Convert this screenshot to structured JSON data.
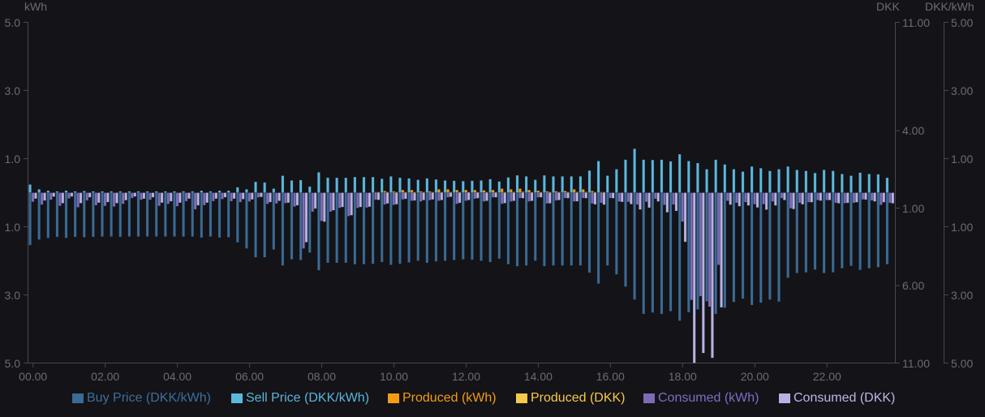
{
  "chart_data": {
    "type": "bar",
    "title": "",
    "xlabel": "",
    "grid": false,
    "legend_position": "bottom",
    "note": "Bars below zero are negative values; axis tick labels display absolute values",
    "x_tick_labels": [
      "00.00",
      "02.00",
      "04.00",
      "06.00",
      "08.00",
      "10.00",
      "12.00",
      "14.00",
      "16.00",
      "18.00",
      "20.00",
      "22.00"
    ],
    "x": [
      "00.00",
      "00.15",
      "00.30",
      "00.45",
      "01.00",
      "01.15",
      "01.30",
      "01.45",
      "02.00",
      "02.15",
      "02.30",
      "02.45",
      "03.00",
      "03.15",
      "03.30",
      "03.45",
      "04.00",
      "04.15",
      "04.30",
      "04.45",
      "05.00",
      "05.15",
      "05.30",
      "05.45",
      "06.00",
      "06.15",
      "06.30",
      "06.45",
      "07.00",
      "07.15",
      "07.30",
      "07.45",
      "08.00",
      "08.15",
      "08.30",
      "08.45",
      "09.00",
      "09.15",
      "09.30",
      "09.45",
      "10.00",
      "10.15",
      "10.30",
      "10.45",
      "11.00",
      "11.15",
      "11.30",
      "11.45",
      "12.00",
      "12.15",
      "12.30",
      "12.45",
      "13.00",
      "13.15",
      "13.30",
      "13.45",
      "14.00",
      "14.15",
      "14.30",
      "14.45",
      "15.00",
      "15.15",
      "15.30",
      "15.45",
      "16.00",
      "16.15",
      "16.30",
      "16.45",
      "17.00",
      "17.15",
      "17.30",
      "17.45",
      "18.00",
      "18.15",
      "18.30",
      "18.45",
      "19.00",
      "19.15",
      "19.30",
      "19.45",
      "20.00",
      "20.15",
      "20.30",
      "20.45",
      "21.00",
      "21.15",
      "21.30",
      "21.45",
      "22.00",
      "22.15",
      "22.30",
      "22.45",
      "23.00",
      "23.15",
      "23.30",
      "23.45"
    ],
    "y_axes": [
      {
        "id": "kwh",
        "title": "kWh",
        "position": "left",
        "range": [
          -5,
          5
        ],
        "tick_values": [
          5,
          3,
          1,
          -1,
          -3,
          -5
        ],
        "tick_labels": [
          "5.0",
          "3.0",
          "1.0",
          "1.0",
          "3.0",
          "5.0"
        ]
      },
      {
        "id": "dkk",
        "title": "DKK",
        "position": "right",
        "range": [
          -11,
          11
        ],
        "tick_values": [
          11,
          4,
          -1,
          -6,
          -11
        ],
        "tick_labels": [
          "11.00",
          "4.00",
          "1.00",
          "6.00",
          "11.00"
        ]
      },
      {
        "id": "dkk_per_kwh",
        "title": "DKK/kWh",
        "position": "right",
        "range": [
          -5,
          5
        ],
        "tick_values": [
          5,
          3,
          1,
          -1,
          -3,
          -5
        ],
        "tick_labels": [
          "5.00",
          "3.00",
          "1.00",
          "1.00",
          "3.00",
          "5.00"
        ]
      }
    ],
    "series": [
      {
        "name": "Buy Price (DKK/kWh)",
        "axis": "dkk_per_kwh",
        "stack": "price",
        "color": "#3a6b94",
        "text_color": "#3d6e9c",
        "values": [
          -1.54,
          -1.38,
          -1.33,
          -1.3,
          -1.33,
          -1.3,
          -1.31,
          -1.3,
          -1.29,
          -1.29,
          -1.3,
          -1.29,
          -1.29,
          -1.29,
          -1.29,
          -1.29,
          -1.29,
          -1.29,
          -1.29,
          -1.32,
          -1.29,
          -1.32,
          -1.31,
          -1.46,
          -1.64,
          -1.9,
          -1.9,
          -1.67,
          -2.14,
          -1.96,
          -1.98,
          -1.76,
          -2.28,
          -2.06,
          -2.06,
          -2.06,
          -2.1,
          -2.1,
          -2.09,
          -2.04,
          -2.12,
          -2.09,
          -2.05,
          -2.0,
          -2.06,
          -2.02,
          -2.0,
          -1.98,
          -1.96,
          -1.97,
          -2.0,
          -2.04,
          -1.94,
          -2.1,
          -2.16,
          -2.14,
          -2.0,
          -2.16,
          -2.14,
          -2.14,
          -2.14,
          -2.14,
          -2.35,
          -2.67,
          -2.14,
          -2.4,
          -2.76,
          -3.14,
          -3.56,
          -3.52,
          -3.56,
          -3.48,
          -3.76,
          -3.51,
          -3.43,
          -3.19,
          -3.56,
          -3.38,
          -3.21,
          -3.11,
          -3.3,
          -3.23,
          -3.14,
          -3.2,
          -2.5,
          -2.36,
          -2.34,
          -2.26,
          -2.36,
          -2.34,
          -2.22,
          -2.15,
          -2.27,
          -2.22,
          -2.19,
          -2.1
        ]
      },
      {
        "name": "Sell Price (DKK/kWh)",
        "axis": "dkk_per_kwh",
        "stack": "price",
        "color": "#5bb8dc",
        "text_color": "#5ab4dc",
        "values": [
          0.24,
          0.1,
          0.06,
          0.04,
          0.06,
          0.04,
          0.05,
          0.04,
          0.04,
          0.04,
          0.04,
          0.04,
          0.04,
          0.04,
          0.04,
          0.04,
          0.04,
          0.04,
          0.04,
          0.06,
          0.04,
          0.06,
          0.06,
          0.16,
          0.1,
          0.32,
          0.3,
          0.12,
          0.5,
          0.36,
          0.37,
          0.18,
          0.6,
          0.44,
          0.44,
          0.44,
          0.46,
          0.46,
          0.46,
          0.41,
          0.48,
          0.44,
          0.42,
          0.38,
          0.42,
          0.39,
          0.36,
          0.35,
          0.34,
          0.35,
          0.36,
          0.4,
          0.33,
          0.45,
          0.51,
          0.48,
          0.38,
          0.51,
          0.48,
          0.48,
          0.48,
          0.48,
          0.65,
          0.93,
          0.5,
          0.69,
          0.97,
          1.29,
          0.97,
          0.96,
          0.97,
          0.92,
          1.13,
          0.93,
          0.87,
          0.69,
          0.97,
          0.83,
          0.69,
          0.62,
          0.77,
          0.72,
          0.64,
          0.69,
          0.77,
          0.67,
          0.64,
          0.58,
          0.67,
          0.64,
          0.55,
          0.5,
          0.59,
          0.55,
          0.54,
          0.44
        ]
      },
      {
        "name": "Produced (kWh)",
        "axis": "kwh",
        "stack": "kwh",
        "color": "#f39c12",
        "text_color": "#f39c12",
        "values": [
          0,
          0,
          0,
          0,
          0,
          0,
          0,
          0,
          0,
          0,
          0,
          0,
          0,
          0,
          0,
          0,
          0,
          0,
          0,
          0,
          0,
          0,
          0,
          0,
          0,
          0,
          0,
          0,
          0,
          0,
          0,
          0,
          0,
          0,
          0,
          0,
          0,
          0,
          0.02,
          0.05,
          0.04,
          0.08,
          0.08,
          0.04,
          0.04,
          0.1,
          0.1,
          0.08,
          0.08,
          0.08,
          0.07,
          0.08,
          0.12,
          0.1,
          0.12,
          0.08,
          0.06,
          0.04,
          0.04,
          0.05,
          0.1,
          0.1,
          0.05,
          0.02,
          0,
          0,
          0,
          0,
          0,
          0,
          0,
          0,
          0,
          0,
          0,
          0,
          0,
          0,
          0,
          0,
          0,
          0,
          0,
          0,
          0,
          0,
          0,
          0,
          0,
          0,
          0,
          0,
          0,
          0,
          0,
          0
        ]
      },
      {
        "name": "Produced (DKK)",
        "axis": "dkk",
        "stack": "dkk",
        "color": "#f7c948",
        "text_color": "#f7c948",
        "values": [
          0,
          0,
          0,
          0,
          0,
          0,
          0,
          0,
          0,
          0,
          0,
          0,
          0,
          0,
          0,
          0,
          0,
          0,
          0,
          0,
          0,
          0,
          0,
          0,
          0,
          0,
          0,
          0,
          0,
          0,
          0,
          0,
          0,
          0,
          0,
          0,
          0,
          0,
          0.01,
          0.02,
          0.02,
          0.04,
          0.03,
          0.02,
          0.02,
          0.04,
          0.04,
          0.03,
          0.03,
          0.03,
          0.03,
          0.03,
          0.04,
          0.05,
          0.06,
          0.04,
          0.02,
          0.02,
          0.02,
          0.02,
          0.05,
          0.05,
          0.03,
          0.02,
          0,
          0,
          0,
          0,
          0,
          0,
          0,
          0,
          0,
          0,
          0,
          0,
          0,
          0,
          0,
          0,
          0,
          0,
          0,
          0,
          0,
          0,
          0,
          0,
          0,
          0,
          0,
          0,
          0,
          0,
          0,
          0
        ]
      },
      {
        "name": "Consumed (kWh)",
        "axis": "kwh",
        "stack": "kwh",
        "color": "#7e6bb6",
        "text_color": "#7e6ec4",
        "values": [
          -0.27,
          -0.35,
          -0.21,
          -0.39,
          -0.17,
          -0.43,
          -0.23,
          -0.37,
          -0.39,
          -0.41,
          -0.33,
          -0.16,
          -0.21,
          -0.21,
          -0.39,
          -0.33,
          -0.4,
          -0.25,
          -0.49,
          -0.37,
          -0.25,
          -0.19,
          -0.25,
          -0.28,
          -0.26,
          -0.14,
          -0.33,
          -0.32,
          -0.31,
          -0.41,
          -1.64,
          -0.56,
          -0.83,
          -0.56,
          -0.45,
          -0.69,
          -0.45,
          -0.44,
          -0.21,
          -0.35,
          -0.36,
          -0.2,
          -0.24,
          -0.26,
          -0.22,
          -0.24,
          -0.14,
          -0.33,
          -0.24,
          -0.18,
          -0.26,
          -0.14,
          -0.33,
          -0.26,
          -0.16,
          -0.26,
          -0.14,
          -0.32,
          -0.23,
          -0.16,
          -0.26,
          -0.16,
          -0.32,
          -0.3,
          -0.16,
          -0.26,
          -0.27,
          -0.35,
          -0.27,
          -0.18,
          -0.36,
          -0.35,
          -0.85,
          -3.15,
          -3.04,
          -3.35,
          -2.12,
          -0.24,
          -0.3,
          -0.28,
          -0.34,
          -0.34,
          -0.26,
          -0.16,
          -0.46,
          -0.3,
          -0.28,
          -0.22,
          -0.22,
          -0.3,
          -0.31,
          -0.3,
          -0.2,
          -0.23,
          -0.36,
          -0.3
        ]
      },
      {
        "name": "Consumed (DKK)",
        "axis": "dkk",
        "stack": "dkk",
        "color": "#b8b2e2",
        "text_color": "#bcb6e8",
        "values": [
          -0.39,
          -0.51,
          -0.26,
          -0.68,
          -0.25,
          -0.68,
          -0.3,
          -0.65,
          -0.61,
          -0.68,
          -0.49,
          -0.25,
          -0.39,
          -0.3,
          -0.65,
          -0.56,
          -0.65,
          -0.39,
          -0.82,
          -0.65,
          -0.39,
          -0.3,
          -0.39,
          -0.42,
          -0.44,
          -0.28,
          -0.61,
          -0.53,
          -0.65,
          -0.82,
          -3.2,
          -1.03,
          -1.88,
          -1.14,
          -0.93,
          -1.46,
          -0.93,
          -0.91,
          -0.47,
          -0.7,
          -0.75,
          -0.4,
          -0.51,
          -0.48,
          -0.44,
          -0.48,
          -0.27,
          -0.66,
          -0.48,
          -0.36,
          -0.53,
          -0.3,
          -0.68,
          -0.53,
          -0.36,
          -0.53,
          -0.3,
          -0.69,
          -0.48,
          -0.36,
          -0.56,
          -0.36,
          -0.76,
          -0.78,
          -0.36,
          -0.6,
          -0.74,
          -1.09,
          -0.97,
          -0.57,
          -1.27,
          -1.18,
          -3.18,
          -11.0,
          -10.36,
          -10.67,
          -7.41,
          -0.78,
          -0.88,
          -0.83,
          -0.96,
          -1.1,
          -0.83,
          -0.48,
          -1.06,
          -0.76,
          -0.62,
          -0.52,
          -0.48,
          -0.69,
          -0.66,
          -0.62,
          -0.45,
          -0.57,
          -0.62,
          -0.69
        ]
      }
    ]
  }
}
